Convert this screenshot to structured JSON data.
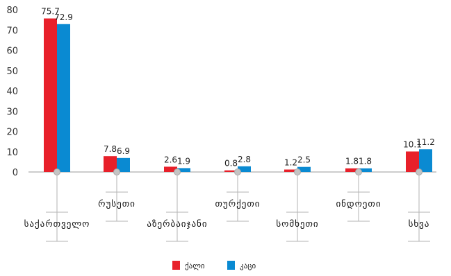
{
  "chart_data": {
    "type": "bar",
    "categories": [
      "საქართველო",
      "რუსეთი",
      "აზერბაიჯანი",
      "თურქეთი",
      "სომხეთი",
      "ინდოეთი",
      "სხვა"
    ],
    "series": [
      {
        "name": "ქალი",
        "values": [
          75.7,
          7.8,
          2.6,
          0.8,
          1.2,
          1.8,
          10.1
        ],
        "color": "#e8202a"
      },
      {
        "name": "კაცი",
        "values": [
          72.9,
          6.9,
          1.9,
          2.8,
          2.5,
          1.8,
          11.2
        ],
        "color": "#0a8ad2"
      }
    ],
    "value_labels": [
      [
        "75.7",
        "7.8",
        "2.6",
        "0.8",
        "1.2",
        "1.8",
        "10.1"
      ],
      [
        "72.9",
        "6.9",
        "1.9",
        "2.8",
        "2.5",
        "1.8",
        "11.2"
      ]
    ],
    "ylim": [
      0,
      80
    ],
    "yticks": [
      "0",
      "10",
      "20",
      "30",
      "40",
      "50",
      "60",
      "70",
      "80"
    ],
    "legend_placement": "bottom-center",
    "grid": false,
    "title": "",
    "xlabel": "",
    "ylabel": ""
  }
}
